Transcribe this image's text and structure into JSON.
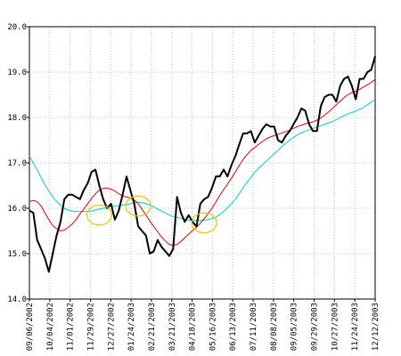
{
  "chart_data": {
    "type": "line",
    "title": "",
    "xlabel": "",
    "ylabel": "",
    "ylim": [
      14.0,
      20.0
    ],
    "grid": true,
    "y_ticks": [
      "14.0",
      "15.0",
      "16.0",
      "17.0",
      "18.0",
      "19.0",
      "20.0"
    ],
    "x_tick_labels": [
      "09/06/2002",
      "10/04/2002",
      "11/01/2002",
      "11/29/2002",
      "12/27/2002",
      "01/24/2003",
      "02/21/2003",
      "03/21/2003",
      "04/18/2003",
      "05/16/2003",
      "06/13/2003",
      "07/11/2003",
      "08/08/2003",
      "09/05/2003",
      "09/29/2003",
      "10/27/2003",
      "11/24/2003",
      "12/12/2003"
    ],
    "series": [
      {
        "color": "#000000",
        "values": [
          15.95,
          15.9,
          15.3,
          15.1,
          14.9,
          14.6,
          15.0,
          15.4,
          15.7,
          16.2,
          16.3,
          16.3,
          16.25,
          16.2,
          16.4,
          16.55,
          16.8,
          16.85,
          16.5,
          16.2,
          16.0,
          16.1,
          15.75,
          15.95,
          16.3,
          16.7,
          16.4,
          16.1,
          15.6,
          15.5,
          15.4,
          15.0,
          15.05,
          15.3,
          15.15,
          15.05,
          14.95,
          15.1,
          16.25,
          15.9,
          15.7,
          15.85,
          15.7,
          15.6,
          16.1,
          16.2,
          16.25,
          16.45,
          16.7,
          16.7,
          16.85,
          16.7,
          16.95,
          17.15,
          17.4,
          17.65,
          17.65,
          17.7,
          17.45,
          17.6,
          17.75,
          17.85,
          17.8,
          17.8,
          17.5,
          17.45,
          17.6,
          17.7,
          17.85,
          18.0,
          18.2,
          18.15,
          17.85,
          17.7,
          17.7,
          18.25,
          18.45,
          18.5,
          18.5,
          18.35,
          18.7,
          18.85,
          18.9,
          18.7,
          18.4,
          18.85,
          18.85,
          19.0,
          19.05,
          19.35
        ]
      },
      {
        "color": "#e00000",
        "values": [
          16.15,
          16.17,
          16.15,
          16.05,
          15.9,
          15.75,
          15.62,
          15.55,
          15.5,
          15.52,
          15.58,
          15.65,
          15.75,
          15.87,
          15.98,
          16.1,
          16.22,
          16.32,
          16.4,
          16.44,
          16.45,
          16.42,
          16.38,
          16.32,
          16.27,
          16.25,
          16.23,
          16.18,
          16.1,
          15.98,
          15.85,
          15.72,
          15.6,
          15.48,
          15.37,
          15.28,
          15.2,
          15.18,
          15.2,
          15.27,
          15.35,
          15.43,
          15.51,
          15.58,
          15.67,
          15.77,
          15.88,
          16.0,
          16.14,
          16.28,
          16.41,
          16.53,
          16.66,
          16.8,
          16.94,
          17.07,
          17.18,
          17.27,
          17.34,
          17.41,
          17.47,
          17.53,
          17.57,
          17.6,
          17.63,
          17.66,
          17.69,
          17.72,
          17.76,
          17.8,
          17.83,
          17.86,
          17.88,
          17.9,
          17.94,
          17.99,
          18.05,
          18.12,
          18.2,
          18.28,
          18.36,
          18.44,
          18.5,
          18.55,
          18.58,
          18.62,
          18.67,
          18.72,
          18.77,
          18.84
        ]
      },
      {
        "color": "#00cccc",
        "values": [
          17.15,
          17.0,
          16.85,
          16.68,
          16.52,
          16.38,
          16.25,
          16.15,
          16.07,
          16.0,
          15.96,
          15.94,
          15.93,
          15.93,
          15.93,
          15.93,
          15.94,
          15.96,
          15.98,
          16.0,
          16.02,
          16.04,
          16.05,
          16.06,
          16.07,
          16.08,
          16.1,
          16.12,
          16.13,
          16.12,
          16.1,
          16.07,
          16.03,
          15.98,
          15.94,
          15.9,
          15.85,
          15.82,
          15.8,
          15.78,
          15.76,
          15.74,
          15.73,
          15.73,
          15.73,
          15.74,
          15.75,
          15.77,
          15.8,
          15.86,
          15.93,
          16.01,
          16.1,
          16.2,
          16.32,
          16.45,
          16.57,
          16.68,
          16.79,
          16.88,
          16.96,
          17.04,
          17.12,
          17.2,
          17.28,
          17.36,
          17.43,
          17.5,
          17.56,
          17.62,
          17.66,
          17.7,
          17.73,
          17.76,
          17.79,
          17.82,
          17.85,
          17.88,
          17.91,
          17.95,
          18.0,
          18.04,
          18.08,
          18.11,
          18.14,
          18.18,
          18.22,
          18.28,
          18.34,
          18.4
        ]
      }
    ],
    "annotations": [
      {
        "shape": "ellipse",
        "color": "#f0c000",
        "x_index": 18,
        "y": 15.85,
        "rx_index": 3.2,
        "ry": 0.22
      },
      {
        "shape": "ellipse",
        "color": "#f0c000",
        "x_index": 28,
        "y": 16.05,
        "rx_index": 3.2,
        "ry": 0.22
      },
      {
        "shape": "ellipse",
        "color": "#f0c000",
        "x_index": 45,
        "y": 15.68,
        "rx_index": 3.2,
        "ry": 0.22
      }
    ]
  }
}
